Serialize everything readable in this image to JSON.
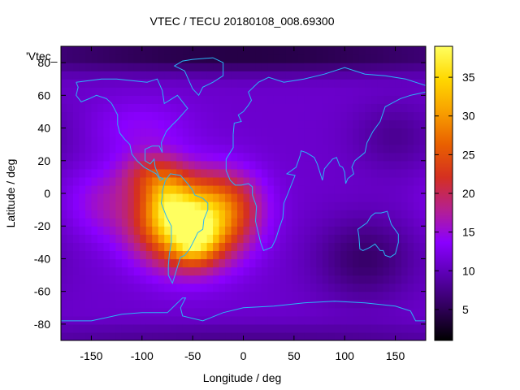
{
  "chart_data": {
    "type": "heatmap",
    "title": "VTEC / TECU 20180108_008.69300",
    "series_label": "'Vtec_",
    "xlabel": "Longitude / deg",
    "ylabel": "Latitude / deg",
    "xlim": [
      -180,
      180
    ],
    "ylim": [
      -90,
      90
    ],
    "x_ticks": [
      -150,
      -100,
      -50,
      0,
      50,
      100,
      150
    ],
    "x_tick_labels": [
      "-150",
      "-100",
      "-50",
      "0",
      "50",
      "100",
      "150"
    ],
    "y_ticks": [
      -80,
      -60,
      -40,
      -20,
      0,
      20,
      40,
      60,
      80
    ],
    "y_tick_labels": [
      "-80",
      "-60",
      "-40",
      "-20",
      "0",
      "20",
      "40",
      "60",
      "80"
    ],
    "colorbar": {
      "range": [
        1,
        39
      ],
      "ticks": [
        5,
        10,
        15,
        20,
        25,
        30,
        35
      ],
      "tick_labels": [
        "5",
        "10",
        "15",
        "20",
        "25",
        "30",
        "35"
      ],
      "palette": [
        "#000000",
        "#30005a",
        "#5a00b0",
        "#8a00ff",
        "#b52090",
        "#d53020",
        "#e96000",
        "#f8a000",
        "#ffd800",
        "#ffff60"
      ]
    },
    "field": {
      "background": 11,
      "grid_step_deg": [
        6,
        5
      ],
      "features": [
        {
          "name": "south-america-anomaly",
          "lon": -55,
          "lat": -18,
          "sigma_lon": 35,
          "sigma_lat": 18,
          "amplitude": 26
        },
        {
          "name": "brazil-peak",
          "lon": -48,
          "lat": -28,
          "sigma_lon": 15,
          "sigma_lat": 10,
          "amplitude": 10
        },
        {
          "name": "andes-crest",
          "lon": -75,
          "lat": -5,
          "sigma_lon": 15,
          "sigma_lat": 12,
          "amplitude": 8
        },
        {
          "name": "central-america-crest",
          "lon": -90,
          "lat": 12,
          "sigma_lon": 22,
          "sigma_lat": 10,
          "amplitude": 8
        },
        {
          "name": "atlantic-crest",
          "lon": -15,
          "lat": -5,
          "sigma_lon": 25,
          "sigma_lat": 15,
          "amplitude": 7
        },
        {
          "name": "pacific-crest",
          "lon": -140,
          "lat": -5,
          "sigma_lon": 25,
          "sigma_lat": 15,
          "amplitude": 4
        },
        {
          "name": "north-america",
          "lon": -100,
          "lat": 40,
          "sigma_lon": 35,
          "sigma_lat": 12,
          "amplitude": 3
        },
        {
          "name": "australia-trough",
          "lon": 120,
          "lat": -40,
          "sigma_lon": 35,
          "sigma_lat": 18,
          "amplitude": -5
        },
        {
          "name": "east-asia-trough",
          "lon": 150,
          "lat": 35,
          "sigma_lon": 30,
          "sigma_lat": 15,
          "amplitude": -3
        },
        {
          "name": "arctic-trough",
          "lon": 0,
          "lat": 85,
          "sigma_lon": 200,
          "sigma_lat": 8,
          "amplitude": -7
        },
        {
          "name": "antarctic-trough",
          "lon": 0,
          "lat": -88,
          "sigma_lon": 200,
          "sigma_lat": 6,
          "amplitude": -3
        }
      ]
    },
    "coastlines": [
      {
        "name": "north-america",
        "points": [
          [
            -165,
            68
          ],
          [
            -140,
            70
          ],
          [
            -125,
            70
          ],
          [
            -95,
            68
          ],
          [
            -85,
            70
          ],
          [
            -80,
            63
          ],
          [
            -78,
            55
          ],
          [
            -65,
            60
          ],
          [
            -55,
            52
          ],
          [
            -65,
            45
          ],
          [
            -70,
            42
          ],
          [
            -76,
            38
          ],
          [
            -81,
            31
          ],
          [
            -80,
            25
          ],
          [
            -83,
            29
          ],
          [
            -90,
            29
          ],
          [
            -97,
            27
          ],
          [
            -97,
            20
          ],
          [
            -92,
            18
          ],
          [
            -88,
            21
          ],
          [
            -87,
            16
          ],
          [
            -83,
            10
          ],
          [
            -79,
            9
          ],
          [
            -82,
            8
          ],
          [
            -86,
            12
          ],
          [
            -92,
            14
          ],
          [
            -98,
            16
          ],
          [
            -105,
            20
          ],
          [
            -110,
            24
          ],
          [
            -112,
            30
          ],
          [
            -117,
            33
          ],
          [
            -122,
            37
          ],
          [
            -124,
            42
          ],
          [
            -124,
            48
          ],
          [
            -130,
            55
          ],
          [
            -135,
            58
          ],
          [
            -145,
            60
          ],
          [
            -152,
            58
          ],
          [
            -160,
            56
          ],
          [
            -165,
            60
          ],
          [
            -163,
            65
          ],
          [
            -165,
            68
          ]
        ]
      },
      {
        "name": "greenland",
        "points": [
          [
            -50,
            82
          ],
          [
            -30,
            83
          ],
          [
            -20,
            80
          ],
          [
            -20,
            72
          ],
          [
            -30,
            68
          ],
          [
            -40,
            65
          ],
          [
            -44,
            60
          ],
          [
            -50,
            64
          ],
          [
            -53,
            68
          ],
          [
            -58,
            75
          ],
          [
            -68,
            78
          ],
          [
            -60,
            81
          ],
          [
            -50,
            82
          ]
        ]
      },
      {
        "name": "south-america",
        "points": [
          [
            -77,
            8
          ],
          [
            -72,
            12
          ],
          [
            -62,
            11
          ],
          [
            -55,
            6
          ],
          [
            -50,
            2
          ],
          [
            -48,
            -1
          ],
          [
            -40,
            -3
          ],
          [
            -35,
            -6
          ],
          [
            -35,
            -10
          ],
          [
            -39,
            -16
          ],
          [
            -40,
            -22
          ],
          [
            -45,
            -24
          ],
          [
            -48,
            -28
          ],
          [
            -53,
            -34
          ],
          [
            -58,
            -38
          ],
          [
            -62,
            -39
          ],
          [
            -65,
            -45
          ],
          [
            -68,
            -51
          ],
          [
            -70,
            -55
          ],
          [
            -74,
            -50
          ],
          [
            -74,
            -44
          ],
          [
            -73,
            -37
          ],
          [
            -71,
            -30
          ],
          [
            -71,
            -20
          ],
          [
            -76,
            -14
          ],
          [
            -81,
            -6
          ],
          [
            -80,
            -2
          ],
          [
            -80,
            1
          ],
          [
            -77,
            8
          ]
        ]
      },
      {
        "name": "eurasia-africa",
        "points": [
          [
            -10,
            36
          ],
          [
            -9,
            43
          ],
          [
            -2,
            44
          ],
          [
            -5,
            48
          ],
          [
            0,
            50
          ],
          [
            5,
            54
          ],
          [
            8,
            57
          ],
          [
            5,
            62
          ],
          [
            15,
            68
          ],
          [
            25,
            71
          ],
          [
            40,
            68
          ],
          [
            60,
            70
          ],
          [
            80,
            73
          ],
          [
            100,
            77
          ],
          [
            120,
            73
          ],
          [
            140,
            72
          ],
          [
            160,
            70
          ],
          [
            180,
            66
          ],
          [
            180,
            62
          ],
          [
            165,
            60
          ],
          [
            155,
            58
          ],
          [
            140,
            53
          ],
          [
            135,
            44
          ],
          [
            128,
            38
          ],
          [
            122,
            31
          ],
          [
            120,
            25
          ],
          [
            110,
            20
          ],
          [
            107,
            16
          ],
          [
            109,
            12
          ],
          [
            103,
            9
          ],
          [
            101,
            6
          ],
          [
            100,
            13
          ],
          [
            98,
            16
          ],
          [
            95,
            17
          ],
          [
            92,
            22
          ],
          [
            88,
            21
          ],
          [
            80,
            15
          ],
          [
            78,
            8
          ],
          [
            73,
            18
          ],
          [
            70,
            22
          ],
          [
            62,
            25
          ],
          [
            57,
            26
          ],
          [
            56,
            23
          ],
          [
            52,
            16
          ],
          [
            43,
            12
          ],
          [
            51,
            11
          ],
          [
            44,
            0
          ],
          [
            40,
            -6
          ],
          [
            39,
            -15
          ],
          [
            35,
            -22
          ],
          [
            32,
            -28
          ],
          [
            28,
            -33
          ],
          [
            20,
            -35
          ],
          [
            17,
            -30
          ],
          [
            12,
            -17
          ],
          [
            13,
            -8
          ],
          [
            9,
            -1
          ],
          [
            9,
            4
          ],
          [
            5,
            6
          ],
          [
            -2,
            5
          ],
          [
            -8,
            5
          ],
          [
            -13,
            8
          ],
          [
            -17,
            14
          ],
          [
            -17,
            21
          ],
          [
            -10,
            28
          ],
          [
            -10,
            36
          ]
        ]
      },
      {
        "name": "australia",
        "points": [
          [
            113,
            -22
          ],
          [
            114,
            -26
          ],
          [
            115,
            -34
          ],
          [
            118,
            -35
          ],
          [
            125,
            -33
          ],
          [
            130,
            -31
          ],
          [
            135,
            -35
          ],
          [
            138,
            -35
          ],
          [
            140,
            -38
          ],
          [
            145,
            -39
          ],
          [
            150,
            -37
          ],
          [
            153,
            -30
          ],
          [
            153,
            -25
          ],
          [
            146,
            -19
          ],
          [
            142,
            -11
          ],
          [
            136,
            -12
          ],
          [
            130,
            -12
          ],
          [
            126,
            -14
          ],
          [
            122,
            -18
          ],
          [
            113,
            -22
          ]
        ]
      },
      {
        "name": "antarctica",
        "points": [
          [
            -180,
            -78
          ],
          [
            -150,
            -78
          ],
          [
            -120,
            -74
          ],
          [
            -100,
            -73
          ],
          [
            -75,
            -73
          ],
          [
            -60,
            -64
          ],
          [
            -57,
            -64
          ],
          [
            -62,
            -70
          ],
          [
            -60,
            -75
          ],
          [
            -40,
            -78
          ],
          [
            -20,
            -73
          ],
          [
            0,
            -70
          ],
          [
            30,
            -69
          ],
          [
            60,
            -67
          ],
          [
            90,
            -66
          ],
          [
            120,
            -67
          ],
          [
            150,
            -69
          ],
          [
            165,
            -72
          ],
          [
            170,
            -78
          ],
          [
            180,
            -78
          ]
        ]
      }
    ]
  }
}
